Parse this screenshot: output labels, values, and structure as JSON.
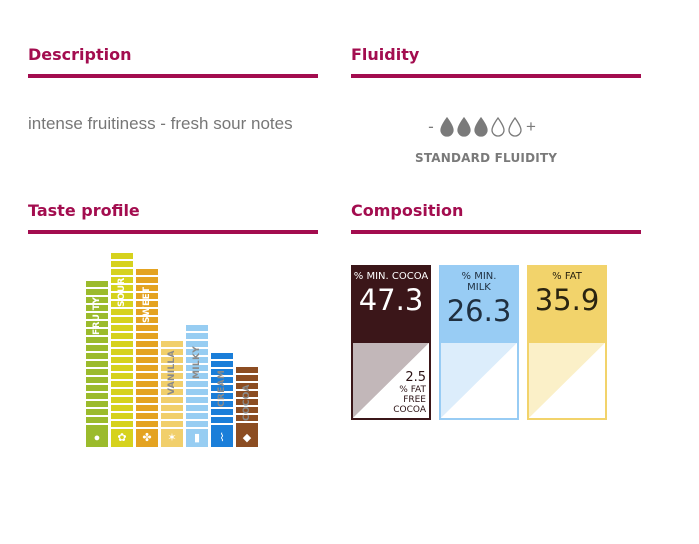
{
  "description": {
    "title": "Description",
    "text": "intense fruitiness - fresh sour notes"
  },
  "fluidity": {
    "title": "Fluidity",
    "minus": "-",
    "plus": "+",
    "level": 3,
    "max": 5,
    "label": "STANDARD FLUIDITY",
    "icon": "drop-icon"
  },
  "taste_profile": {
    "title": "Taste profile",
    "bars": [
      {
        "label": "FRUITY",
        "level": 0.84,
        "color": "#9bbb2c",
        "label_color": "#ffffff",
        "icon": "apple-icon",
        "glyph": "●"
      },
      {
        "label": "SOUR",
        "level": 1.0,
        "color": "#d6d21d",
        "label_color": "#ffffff",
        "icon": "lemon-icon",
        "glyph": "✿"
      },
      {
        "label": "SWEET",
        "level": 0.91,
        "color": "#e4a321",
        "label_color": "#ffffff",
        "icon": "flower-icon",
        "glyph": "✤"
      },
      {
        "label": "VANILLA",
        "level": 0.5,
        "color": "#f1cf6b",
        "label_color": "#8a8a8a",
        "icon": "vanilla-icon",
        "glyph": "✶"
      },
      {
        "label": "MILKY",
        "level": 0.59,
        "color": "#97cdf2",
        "label_color": "#8a8a8a",
        "icon": "milk-icon",
        "glyph": "▮"
      },
      {
        "label": "CREAM",
        "level": 0.43,
        "color": "#1a7ed9",
        "label_color": "#8a8a8a",
        "icon": "cream-icon",
        "glyph": "⌇"
      },
      {
        "label": "COCOA",
        "level": 0.35,
        "color": "#8c4d22",
        "label_color": "#8a8a8a",
        "icon": "cocoa-bean-icon",
        "glyph": "◆"
      }
    ]
  },
  "composition": {
    "title": "Composition",
    "cards": [
      {
        "label": "% MIN. COCOA",
        "value": "47.3",
        "top_color": "#3b1619",
        "border_color": "#3b1619",
        "text_color": "#ffffff",
        "bottom_a": "#c2b7b9",
        "bottom_b": "#ffffff",
        "sub_value": "2.5",
        "sub_label": "% FAT FREE COCOA"
      },
      {
        "label": "% MIN. MILK",
        "value": "26.3",
        "top_color": "#98ccf4",
        "border_color": "#98ccf4",
        "text_color": "#1f2f3f",
        "bottom_a": "#dcedfb",
        "bottom_b": "#ffffff"
      },
      {
        "label": "% FAT",
        "value": "35.9",
        "top_color": "#f2d36b",
        "border_color": "#f2d36b",
        "text_color": "#2a2410",
        "bottom_a": "#fbf0c8",
        "bottom_b": "#ffffff"
      }
    ]
  },
  "colors": {
    "accent": "#a30d4f",
    "muted_text": "#777777"
  }
}
